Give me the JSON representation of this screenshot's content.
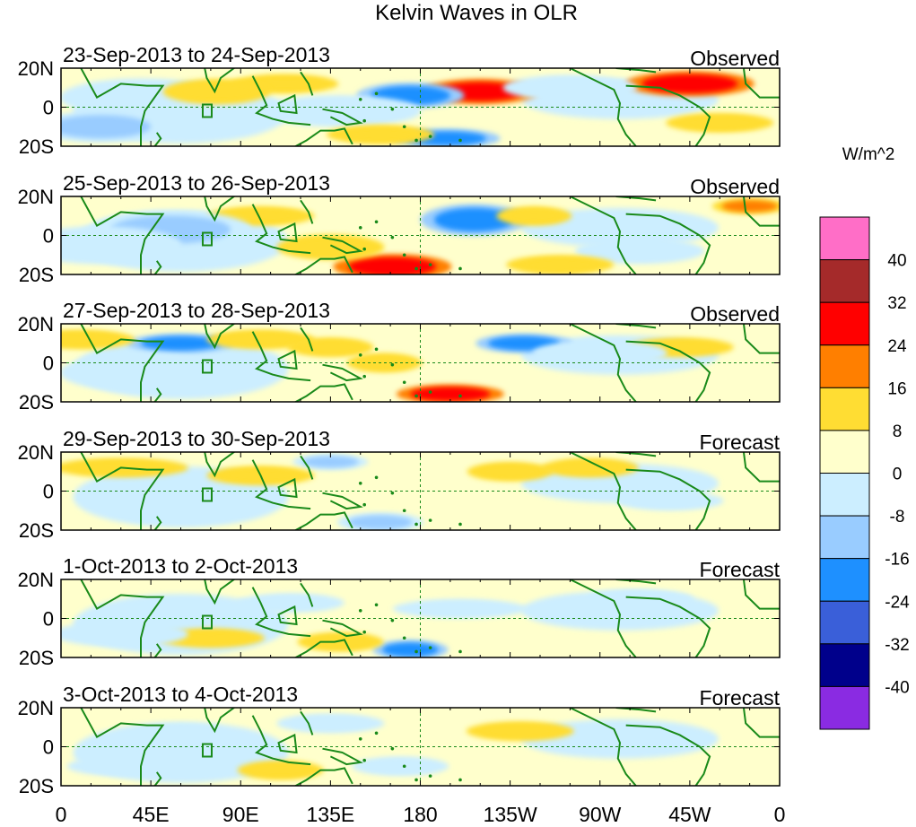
{
  "title": "Kelvin Waves in OLR",
  "chart_data": {
    "type": "heatmap",
    "title": "Kelvin Waves in OLR",
    "variable": "OLR anomaly",
    "units": "W/m^2",
    "x_ticks": [
      "0",
      "45E",
      "90E",
      "135E",
      "180",
      "135W",
      "90W",
      "45W",
      "0"
    ],
    "y_ticks": [
      "20N",
      "0",
      "20S"
    ],
    "xlim": [
      0,
      360
    ],
    "ylim": [
      -20,
      20
    ],
    "colorbar": {
      "label": "W/m^2",
      "levels": [
        "40",
        "32",
        "24",
        "16",
        "8",
        "0",
        "-8",
        "-16",
        "-24",
        "-32",
        "-40"
      ],
      "colors": [
        "#ff6ec7",
        "#a52a2a",
        "#ff0000",
        "#ff7f00",
        "#ffdd33",
        "#ffffcc",
        "#cceeff",
        "#99ccff",
        "#1e90ff",
        "#3a5fd9",
        "#00008b",
        "#8a2be2"
      ]
    },
    "panels": [
      {
        "period": "23-Sep-2013 to 24-Sep-2013",
        "status": "Observed",
        "blobs": [
          {
            "lon": 210,
            "lat": 8,
            "w": 22,
            "h": 8,
            "level": 24
          },
          {
            "lon": 315,
            "lat": 12,
            "w": 24,
            "h": 8,
            "level": 24
          },
          {
            "lon": 112,
            "lat": 12,
            "w": 20,
            "h": 6,
            "level": 8
          },
          {
            "lon": 175,
            "lat": 6,
            "w": 20,
            "h": 8,
            "level": -24
          },
          {
            "lon": 193,
            "lat": -16,
            "w": 20,
            "h": 6,
            "level": -24
          },
          {
            "lon": 40,
            "lat": 5,
            "w": 30,
            "h": 12,
            "level": -8
          },
          {
            "lon": 20,
            "lat": -10,
            "w": 25,
            "h": 10,
            "level": -16
          },
          {
            "lon": 140,
            "lat": -2,
            "w": 30,
            "h": 10,
            "level": -8
          },
          {
            "lon": 330,
            "lat": -8,
            "w": 20,
            "h": 6,
            "level": 8
          },
          {
            "lon": 255,
            "lat": 10,
            "w": 25,
            "h": 8,
            "level": -8
          },
          {
            "lon": 160,
            "lat": -14,
            "w": 20,
            "h": 6,
            "level": 8
          },
          {
            "lon": 78,
            "lat": 8,
            "w": 20,
            "h": 8,
            "level": 8
          }
        ]
      },
      {
        "period": "25-Sep-2013 to 26-Sep-2013",
        "status": "Observed",
        "blobs": [
          {
            "lon": 207,
            "lat": 8,
            "w": 20,
            "h": 10,
            "level": -24
          },
          {
            "lon": 166,
            "lat": -16,
            "w": 22,
            "h": 8,
            "level": 24
          },
          {
            "lon": 345,
            "lat": 15,
            "w": 14,
            "h": 5,
            "level": 16
          },
          {
            "lon": 100,
            "lat": 10,
            "w": 20,
            "h": 6,
            "level": 8
          },
          {
            "lon": 55,
            "lat": 3,
            "w": 30,
            "h": 12,
            "level": -16
          },
          {
            "lon": 20,
            "lat": -5,
            "w": 30,
            "h": 12,
            "level": -8
          },
          {
            "lon": 237,
            "lat": 10,
            "w": 14,
            "h": 6,
            "level": 8
          },
          {
            "lon": 135,
            "lat": -6,
            "w": 20,
            "h": 8,
            "level": 8
          },
          {
            "lon": 290,
            "lat": -8,
            "w": 24,
            "h": 8,
            "level": -8
          },
          {
            "lon": 250,
            "lat": -15,
            "w": 20,
            "h": 6,
            "level": 8
          }
        ]
      },
      {
        "period": "27-Sep-2013 to 28-Sep-2013",
        "status": "Observed",
        "blobs": [
          {
            "lon": 232,
            "lat": 10,
            "w": 18,
            "h": 6,
            "level": -24
          },
          {
            "lon": 60,
            "lat": 10,
            "w": 20,
            "h": 6,
            "level": -24
          },
          {
            "lon": 195,
            "lat": -16,
            "w": 20,
            "h": 6,
            "level": 24
          },
          {
            "lon": 10,
            "lat": 12,
            "w": 20,
            "h": 6,
            "level": 8
          },
          {
            "lon": 100,
            "lat": 12,
            "w": 20,
            "h": 6,
            "level": 8
          },
          {
            "lon": 135,
            "lat": 8,
            "w": 16,
            "h": 6,
            "level": 8
          },
          {
            "lon": 162,
            "lat": 0,
            "w": 14,
            "h": 6,
            "level": 8
          },
          {
            "lon": 310,
            "lat": 8,
            "w": 20,
            "h": 6,
            "level": 8
          },
          {
            "lon": 40,
            "lat": -5,
            "w": 30,
            "h": 12,
            "level": -8
          },
          {
            "lon": 270,
            "lat": 5,
            "w": 25,
            "h": 8,
            "level": -8
          }
        ]
      },
      {
        "period": "29-Sep-2013 to 30-Sep-2013",
        "status": "Forecast",
        "blobs": [
          {
            "lon": 225,
            "lat": 10,
            "w": 16,
            "h": 6,
            "level": 8
          },
          {
            "lon": 135,
            "lat": 15,
            "w": 14,
            "h": 5,
            "level": -16
          },
          {
            "lon": 160,
            "lat": -16,
            "w": 16,
            "h": 6,
            "level": -16
          },
          {
            "lon": 30,
            "lat": 12,
            "w": 25,
            "h": 6,
            "level": 8
          },
          {
            "lon": 100,
            "lat": 8,
            "w": 20,
            "h": 6,
            "level": 8
          },
          {
            "lon": 60,
            "lat": -10,
            "w": 25,
            "h": 8,
            "level": -8
          },
          {
            "lon": 265,
            "lat": 12,
            "w": 18,
            "h": 6,
            "level": 8
          },
          {
            "lon": 305,
            "lat": -5,
            "w": 20,
            "h": 6,
            "level": -8
          }
        ]
      },
      {
        "period": "1-Oct-2013 to 2-Oct-2013",
        "status": "Forecast",
        "blobs": [
          {
            "lon": 175,
            "lat": -16,
            "w": 14,
            "h": 6,
            "level": -24
          },
          {
            "lon": 75,
            "lat": -10,
            "w": 20,
            "h": 6,
            "level": 8
          },
          {
            "lon": 140,
            "lat": -12,
            "w": 16,
            "h": 6,
            "level": 8
          },
          {
            "lon": 30,
            "lat": -8,
            "w": 25,
            "h": 8,
            "level": -8
          },
          {
            "lon": 115,
            "lat": 8,
            "w": 20,
            "h": 6,
            "level": -8
          },
          {
            "lon": 200,
            "lat": 5,
            "w": 25,
            "h": 6,
            "level": -8
          },
          {
            "lon": 290,
            "lat": 10,
            "w": 20,
            "h": 6,
            "level": -8
          }
        ]
      },
      {
        "period": "3-Oct-2013 to 4-Oct-2013",
        "status": "Forecast",
        "blobs": [
          {
            "lon": 60,
            "lat": 5,
            "w": 20,
            "h": 8,
            "level": -8
          },
          {
            "lon": 170,
            "lat": -10,
            "w": 18,
            "h": 6,
            "level": -8
          },
          {
            "lon": 110,
            "lat": -12,
            "w": 16,
            "h": 6,
            "level": 8
          },
          {
            "lon": 135,
            "lat": 12,
            "w": 20,
            "h": 6,
            "level": -8
          },
          {
            "lon": 30,
            "lat": -10,
            "w": 20,
            "h": 6,
            "level": -8
          },
          {
            "lon": 230,
            "lat": 8,
            "w": 20,
            "h": 6,
            "level": 8
          }
        ]
      }
    ]
  }
}
